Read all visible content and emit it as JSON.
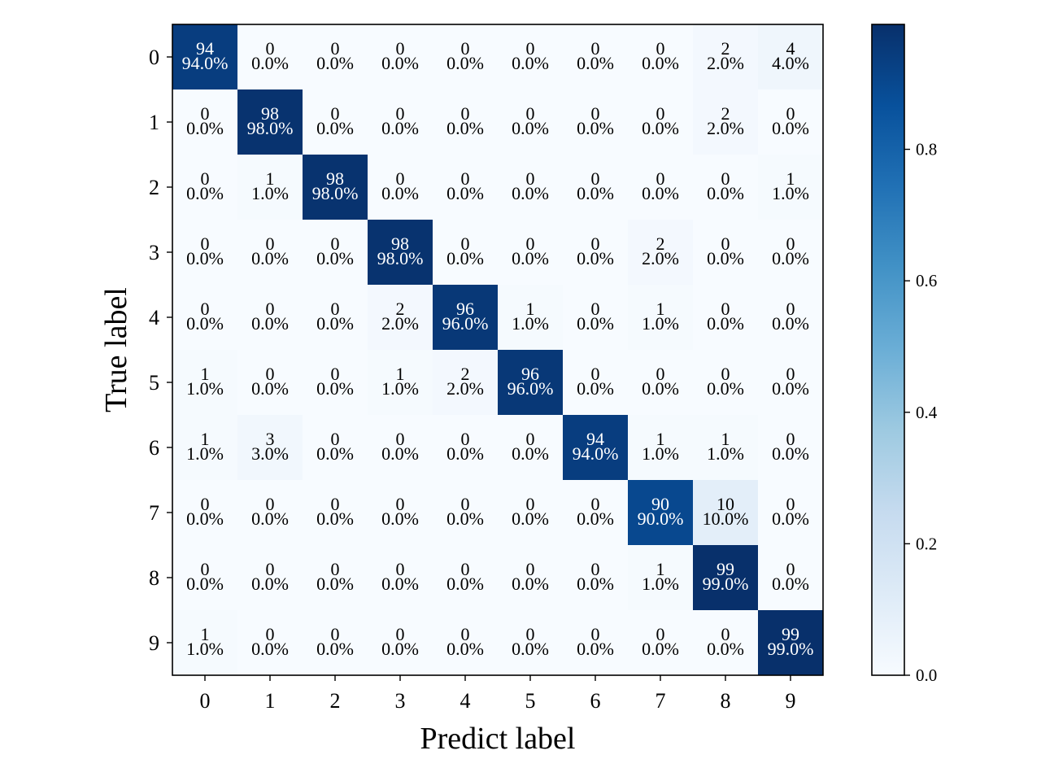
{
  "chart_data": {
    "type": "heatmap",
    "title": "",
    "xlabel": "Predict label",
    "ylabel": "True label",
    "x_ticks": [
      "0",
      "1",
      "2",
      "3",
      "4",
      "5",
      "6",
      "7",
      "8",
      "9"
    ],
    "y_ticks": [
      "0",
      "1",
      "2",
      "3",
      "4",
      "5",
      "6",
      "7",
      "8",
      "9"
    ],
    "counts": [
      [
        94,
        0,
        0,
        0,
        0,
        0,
        0,
        0,
        2,
        4
      ],
      [
        0,
        98,
        0,
        0,
        0,
        0,
        0,
        0,
        2,
        0
      ],
      [
        0,
        1,
        98,
        0,
        0,
        0,
        0,
        0,
        0,
        1
      ],
      [
        0,
        0,
        0,
        98,
        0,
        0,
        0,
        2,
        0,
        0
      ],
      [
        0,
        0,
        0,
        2,
        96,
        1,
        0,
        1,
        0,
        0
      ],
      [
        1,
        0,
        0,
        1,
        2,
        96,
        0,
        0,
        0,
        0
      ],
      [
        1,
        3,
        0,
        0,
        0,
        0,
        94,
        1,
        1,
        0
      ],
      [
        0,
        0,
        0,
        0,
        0,
        0,
        0,
        90,
        10,
        0
      ],
      [
        0,
        0,
        0,
        0,
        0,
        0,
        0,
        1,
        99,
        0
      ],
      [
        1,
        0,
        0,
        0,
        0,
        0,
        0,
        0,
        0,
        99
      ]
    ],
    "percent_labels": [
      [
        "94.0%",
        "0.0%",
        "0.0%",
        "0.0%",
        "0.0%",
        "0.0%",
        "0.0%",
        "0.0%",
        "2.0%",
        "4.0%"
      ],
      [
        "0.0%",
        "98.0%",
        "0.0%",
        "0.0%",
        "0.0%",
        "0.0%",
        "0.0%",
        "0.0%",
        "2.0%",
        "0.0%"
      ],
      [
        "0.0%",
        "1.0%",
        "98.0%",
        "0.0%",
        "0.0%",
        "0.0%",
        "0.0%",
        "0.0%",
        "0.0%",
        "1.0%"
      ],
      [
        "0.0%",
        "0.0%",
        "0.0%",
        "98.0%",
        "0.0%",
        "0.0%",
        "0.0%",
        "2.0%",
        "0.0%",
        "0.0%"
      ],
      [
        "0.0%",
        "0.0%",
        "0.0%",
        "2.0%",
        "96.0%",
        "1.0%",
        "0.0%",
        "1.0%",
        "0.0%",
        "0.0%"
      ],
      [
        "1.0%",
        "0.0%",
        "0.0%",
        "1.0%",
        "2.0%",
        "96.0%",
        "0.0%",
        "0.0%",
        "0.0%",
        "0.0%"
      ],
      [
        "1.0%",
        "3.0%",
        "0.0%",
        "0.0%",
        "0.0%",
        "0.0%",
        "94.0%",
        "1.0%",
        "1.0%",
        "0.0%"
      ],
      [
        "0.0%",
        "0.0%",
        "0.0%",
        "0.0%",
        "0.0%",
        "0.0%",
        "0.0%",
        "90.0%",
        "10.0%",
        "0.0%"
      ],
      [
        "0.0%",
        "0.0%",
        "0.0%",
        "0.0%",
        "0.0%",
        "0.0%",
        "0.0%",
        "1.0%",
        "99.0%",
        "0.0%"
      ],
      [
        "1.0%",
        "0.0%",
        "0.0%",
        "0.0%",
        "0.0%",
        "0.0%",
        "0.0%",
        "0.0%",
        "0.0%",
        "99.0%"
      ]
    ],
    "colormap": "Blues",
    "colormap_colors": [
      "#f7fbff",
      "#deebf7",
      "#c6dbef",
      "#9ecae1",
      "#6baed6",
      "#4292c6",
      "#2171b5",
      "#08519c",
      "#08306b"
    ],
    "value_range": [
      0,
      0.99
    ],
    "colorbar": {
      "ticks": [
        0.0,
        0.2,
        0.4,
        0.6,
        0.8
      ],
      "tick_labels": [
        "0.0",
        "0.2",
        "0.4",
        "0.6",
        "0.8"
      ]
    },
    "text_colors": {
      "dark": "#000000",
      "light": "#ffffff"
    },
    "grid": false
  }
}
